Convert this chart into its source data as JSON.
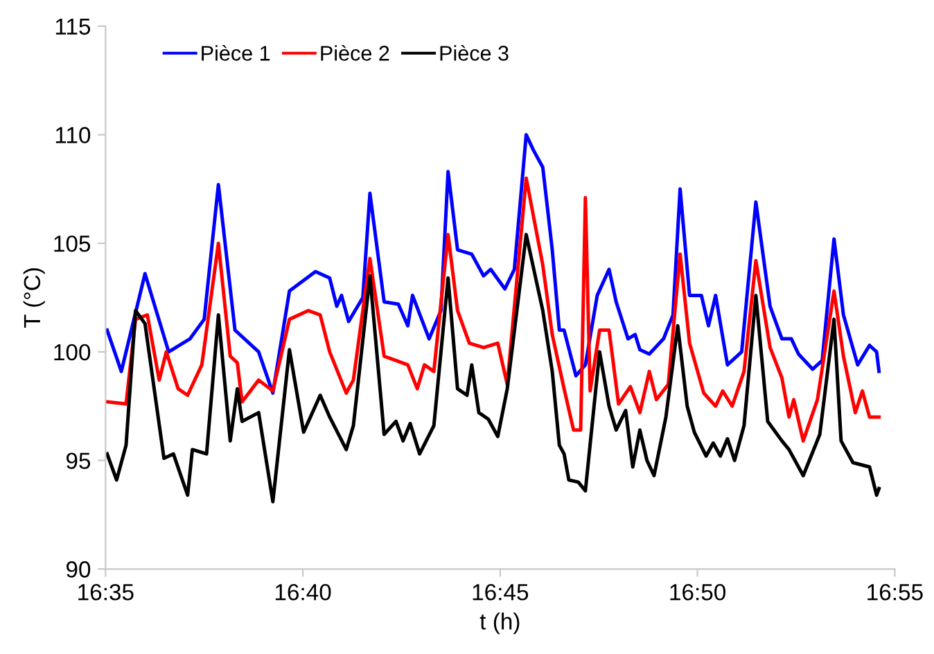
{
  "chart_data": {
    "type": "line",
    "xlabel": "t (h)",
    "ylabel": "T (°C)",
    "xlim": [
      16.583333,
      16.916667
    ],
    "ylim": [
      90,
      115
    ],
    "xticks": [
      {
        "value": 16.583333,
        "label": "16:35"
      },
      {
        "value": 16.666667,
        "label": "16:40"
      },
      {
        "value": 16.75,
        "label": "16:45"
      },
      {
        "value": 16.833333,
        "label": "16:50"
      },
      {
        "value": 16.916667,
        "label": "16:55"
      }
    ],
    "yticks": [
      90,
      95,
      100,
      105,
      110,
      115
    ],
    "grid": false,
    "legend": "top left",
    "marker": "none",
    "line_style": "solid",
    "series": [
      {
        "name": "Pièce 1",
        "color": "#0000ff",
        "x": [
          16.584,
          16.59,
          16.6,
          16.61,
          16.619,
          16.625,
          16.631,
          16.638,
          16.648,
          16.654,
          16.661,
          16.672,
          16.678,
          16.681,
          16.683,
          16.686,
          16.692,
          16.695,
          16.701,
          16.707,
          16.711,
          16.713,
          16.72,
          16.725,
          16.728,
          16.732,
          16.738,
          16.743,
          16.746,
          16.752,
          16.756,
          16.761,
          16.764,
          16.768,
          16.772,
          16.775,
          16.777,
          16.782,
          16.786,
          16.791,
          16.796,
          16.799,
          16.804,
          16.807,
          16.809,
          16.813,
          16.819,
          16.823,
          16.826,
          16.83,
          16.835,
          16.838,
          16.841,
          16.846,
          16.852,
          16.858,
          16.864,
          16.869,
          16.873,
          16.876,
          16.882,
          16.886,
          16.891,
          16.895,
          16.901,
          16.906,
          16.909,
          16.91
        ],
        "values": [
          101.0,
          99.1,
          103.6,
          100.0,
          100.6,
          101.5,
          107.7,
          101.0,
          100.0,
          98.1,
          102.8,
          103.7,
          103.4,
          102.1,
          102.6,
          101.4,
          102.5,
          107.3,
          102.3,
          102.2,
          101.2,
          102.6,
          100.6,
          101.9,
          108.3,
          104.7,
          104.5,
          103.5,
          103.8,
          102.9,
          103.8,
          110.0,
          109.3,
          108.5,
          104.7,
          101.0,
          101.0,
          98.9,
          99.4,
          102.6,
          103.8,
          102.3,
          100.6,
          100.8,
          100.1,
          99.9,
          100.6,
          101.7,
          107.5,
          102.6,
          102.6,
          101.2,
          102.6,
          99.4,
          100.0,
          106.9,
          102.1,
          100.6,
          100.6,
          99.9,
          99.2,
          99.6,
          105.2,
          101.7,
          99.4,
          100.3,
          100.0,
          99.1
        ]
      },
      {
        "name": "Pièce 2",
        "color": "#ff0000",
        "x": [
          16.584,
          16.592,
          16.596,
          16.601,
          16.606,
          16.609,
          16.614,
          16.618,
          16.624,
          16.631,
          16.636,
          16.639,
          16.641,
          16.648,
          16.654,
          16.661,
          16.669,
          16.674,
          16.678,
          16.685,
          16.688,
          16.695,
          16.701,
          16.706,
          16.711,
          16.715,
          16.718,
          16.722,
          16.728,
          16.732,
          16.737,
          16.743,
          16.749,
          16.753,
          16.761,
          16.768,
          16.772,
          16.777,
          16.781,
          16.784,
          16.786,
          16.788,
          16.792,
          16.796,
          16.8,
          16.805,
          16.809,
          16.813,
          16.816,
          16.821,
          16.826,
          16.83,
          16.836,
          16.841,
          16.844,
          16.848,
          16.853,
          16.858,
          16.864,
          16.869,
          16.872,
          16.874,
          16.878,
          16.884,
          16.891,
          16.895,
          16.9,
          16.903,
          16.906,
          16.91
        ],
        "values": [
          97.7,
          97.6,
          101.5,
          101.7,
          98.7,
          100.0,
          98.3,
          98.0,
          99.4,
          105.0,
          99.8,
          99.5,
          97.7,
          98.7,
          98.2,
          101.5,
          101.9,
          101.7,
          100.0,
          98.1,
          98.7,
          104.3,
          99.8,
          99.6,
          99.4,
          98.3,
          99.4,
          99.1,
          105.4,
          101.9,
          100.4,
          100.2,
          100.4,
          98.5,
          108.0,
          104.0,
          100.8,
          98.3,
          96.4,
          96.4,
          107.1,
          98.2,
          101.0,
          101.0,
          97.6,
          98.4,
          97.2,
          99.1,
          97.8,
          98.5,
          104.5,
          100.4,
          98.1,
          97.5,
          98.2,
          97.5,
          99.1,
          104.2,
          100.2,
          98.8,
          97.0,
          97.8,
          95.9,
          97.8,
          102.8,
          99.8,
          97.2,
          98.2,
          97.0,
          97.0
        ]
      },
      {
        "name": "Pièce 3",
        "color": "#000000",
        "x": [
          16.584,
          16.588,
          16.592,
          16.596,
          16.6,
          16.608,
          16.612,
          16.618,
          16.62,
          16.626,
          16.631,
          16.636,
          16.639,
          16.641,
          16.648,
          16.654,
          16.661,
          16.667,
          16.674,
          16.678,
          16.685,
          16.688,
          16.695,
          16.701,
          16.706,
          16.709,
          16.712,
          16.716,
          16.722,
          16.728,
          16.732,
          16.736,
          16.738,
          16.741,
          16.745,
          16.749,
          16.753,
          16.761,
          16.768,
          16.772,
          16.775,
          16.777,
          16.779,
          16.783,
          16.786,
          16.792,
          16.796,
          16.799,
          16.803,
          16.806,
          16.809,
          16.812,
          16.815,
          16.82,
          16.825,
          16.829,
          16.832,
          16.837,
          16.84,
          16.843,
          16.846,
          16.849,
          16.853,
          16.858,
          16.863,
          16.869,
          16.872,
          16.878,
          16.885,
          16.891,
          16.894,
          16.899,
          16.906,
          16.909,
          16.91
        ],
        "values": [
          95.3,
          94.1,
          95.7,
          101.9,
          101.3,
          95.1,
          95.3,
          93.4,
          95.5,
          95.3,
          101.7,
          95.9,
          98.3,
          96.8,
          97.2,
          93.1,
          100.1,
          96.3,
          98.0,
          97.0,
          95.5,
          96.6,
          103.5,
          96.2,
          96.8,
          95.9,
          96.7,
          95.3,
          96.6,
          103.4,
          98.3,
          98.0,
          99.4,
          97.2,
          96.9,
          96.1,
          98.3,
          105.4,
          101.9,
          99.1,
          95.7,
          95.3,
          94.1,
          94.0,
          93.6,
          100.0,
          97.5,
          96.4,
          97.3,
          94.7,
          96.4,
          95.0,
          94.3,
          97.0,
          101.2,
          97.5,
          96.3,
          95.2,
          95.8,
          95.2,
          96.0,
          95.0,
          96.6,
          102.6,
          96.8,
          95.9,
          95.5,
          94.3,
          96.2,
          101.5,
          95.9,
          94.9,
          94.7,
          93.4,
          93.7
        ]
      }
    ]
  }
}
